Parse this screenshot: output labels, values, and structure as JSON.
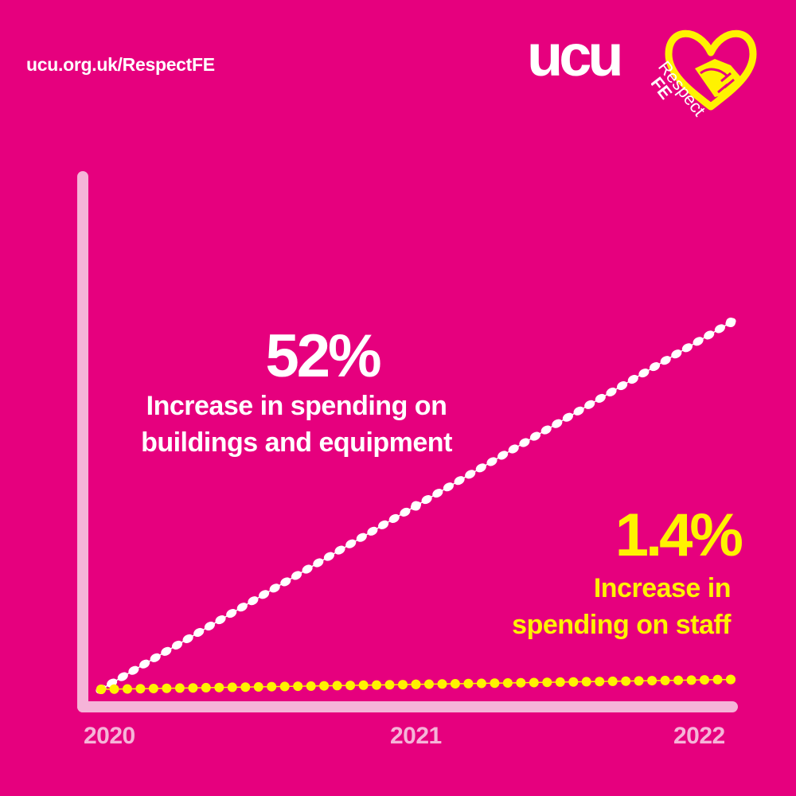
{
  "header": {
    "url": "ucu.org.uk/RespectFE",
    "logo": "ucu",
    "badge_line1": "Respect",
    "badge_line2": "FE",
    "badge_icon": "handshake-heart-icon"
  },
  "colors": {
    "background": "#e6007e",
    "white_series": "#ffffff",
    "yellow_series": "#fff200",
    "axis": "#f5b4d8"
  },
  "annotations": {
    "buildings_value": "52%",
    "buildings_text_line1": "Increase in spending on",
    "buildings_text_line2": "buildings and equipment",
    "staff_value": "1.4%",
    "staff_text_line1": "Increase in",
    "staff_text_line2": "spending on staff"
  },
  "chart_data": {
    "type": "line",
    "x": [
      "2020",
      "2021",
      "2022"
    ],
    "series": [
      {
        "values": [
          0,
          26,
          52
        ],
        "color": "#ffffff"
      },
      {
        "values": [
          0,
          0.7,
          1.4
        ],
        "color": "#fff200"
      }
    ],
    "ylim": [
      0,
      60
    ],
    "grid": false,
    "legend": "none"
  }
}
